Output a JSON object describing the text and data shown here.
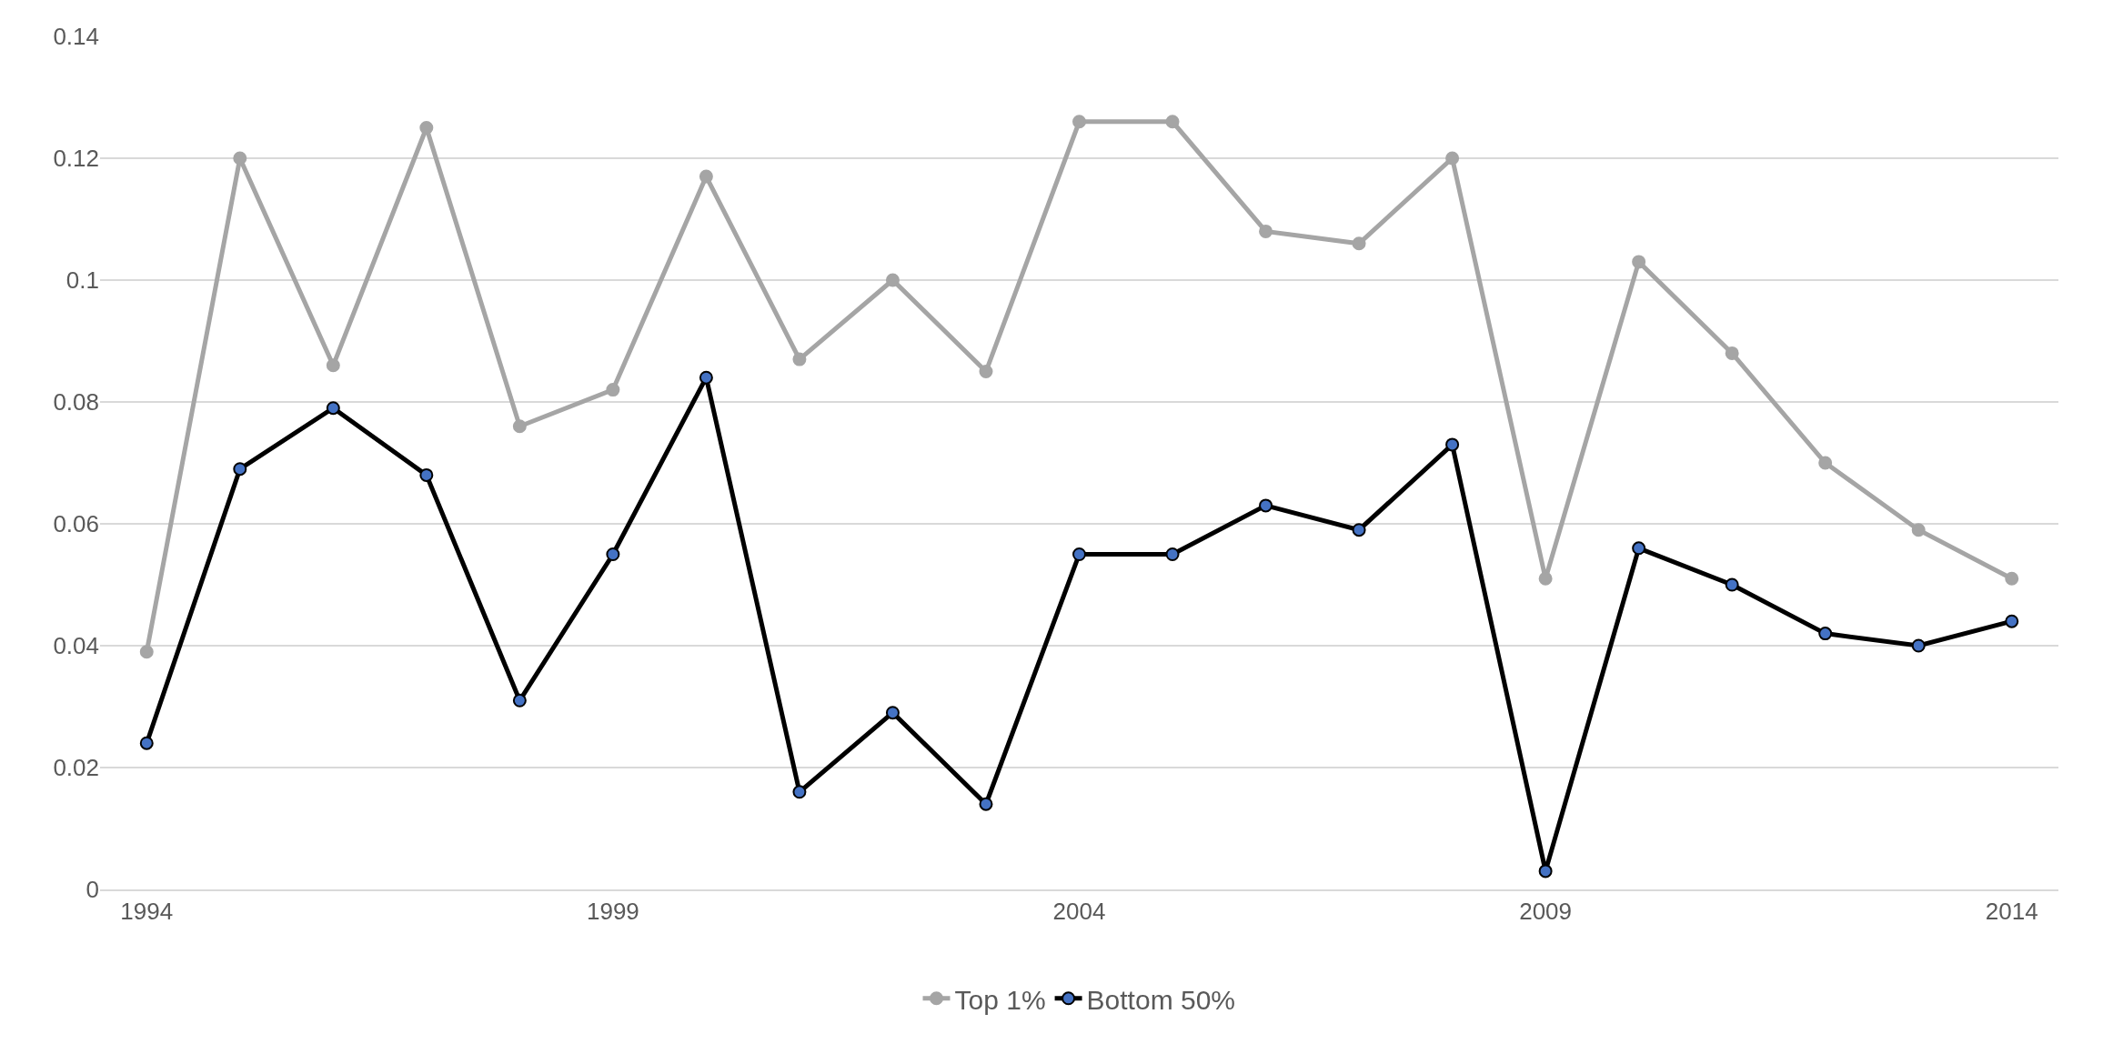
{
  "chart_data": {
    "type": "line",
    "x": [
      1994,
      1995,
      1996,
      1997,
      1998,
      1999,
      2000,
      2001,
      2002,
      2003,
      2004,
      2005,
      2006,
      2007,
      2008,
      2009,
      2010,
      2011,
      2012,
      2013,
      2014
    ],
    "series": [
      {
        "name": "Top 1%",
        "color": "#a5a5a5",
        "values": [
          0.039,
          0.12,
          0.086,
          0.125,
          0.076,
          0.082,
          0.117,
          0.087,
          0.1,
          0.085,
          0.126,
          0.126,
          0.108,
          0.106,
          0.12,
          0.051,
          0.103,
          0.088,
          0.07,
          0.059,
          0.051
        ]
      },
      {
        "name": "Bottom 50%",
        "color": "#000000",
        "colors": [
          "#4472c4",
          "#4472c4",
          "#4472c4",
          "#4472c4",
          "#4472c4",
          "#4472c4",
          "#4472c4",
          "#4472c4",
          "#4472c4",
          "#4472c4",
          "#4472c4",
          "#4472c4",
          "#4472c4",
          "#4472c4",
          "#4472c4",
          "#4472c4",
          "#4472c4",
          "#4472c4",
          "#4472c4",
          "#4472c4",
          "#4472c4"
        ],
        "values": [
          0.024,
          0.069,
          0.079,
          0.068,
          0.031,
          0.055,
          0.084,
          0.016,
          0.029,
          0.014,
          0.055,
          0.055,
          0.063,
          0.059,
          0.073,
          0.003,
          0.056,
          0.05,
          0.042,
          0.04,
          0.044
        ]
      }
    ],
    "xlim": [
      1993.5,
      2014.5
    ],
    "xticks": [
      1994,
      1999,
      2004,
      2009,
      2014
    ],
    "ylim": [
      0,
      0.14
    ],
    "yticks": [
      0,
      0.02,
      0.04,
      0.06,
      0.08,
      0.1,
      0.12,
      0.14
    ],
    "grid": "y",
    "legend": "bottom",
    "marker": "circle",
    "line_style": "solid"
  }
}
